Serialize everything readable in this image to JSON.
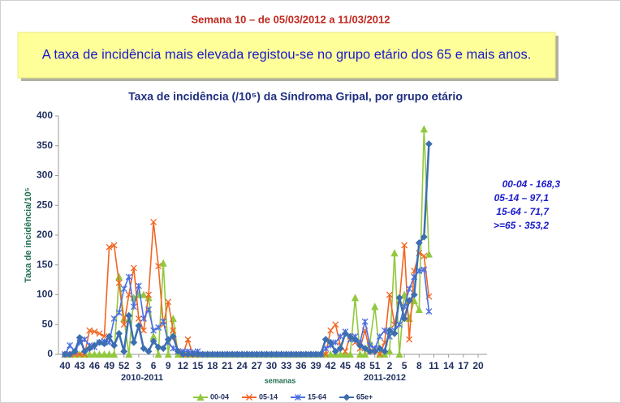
{
  "chart_data": {
    "type": "line",
    "header": "Semana 10 – de 05/03/2012 a 11/03/2012",
    "highlight": "A taxa de incidência mais elevada registou-se no grupo etário dos 65 e mais anos.",
    "title": "Taxa de incidência (/10⁵) da Síndroma Gripal, por grupo etário",
    "y_label": "Taxa de incidência/10⁵",
    "x_label": "semanas",
    "season_labels": [
      "2010-2011",
      "2011-2012"
    ],
    "annotations": [
      "00-04 -  168,3",
      "05-14 –   97,1",
      "15-64 -   71,7",
      ">=65 -   353,2"
    ],
    "categories": [
      "40",
      null,
      null,
      "43",
      null,
      null,
      "46",
      null,
      null,
      "49",
      null,
      null,
      "52",
      null,
      null,
      "3",
      null,
      null,
      "6",
      null,
      null,
      "9",
      null,
      null,
      "12",
      null,
      null,
      "15",
      null,
      null,
      "18",
      null,
      null,
      "21",
      null,
      null,
      "24",
      null,
      null,
      "27",
      null,
      null,
      "30",
      null,
      null,
      "33",
      null,
      null,
      "36",
      null,
      null,
      "39",
      null,
      null,
      "42",
      null,
      null,
      "45",
      null,
      null,
      "48",
      null,
      null,
      "51",
      null,
      null,
      "2",
      null,
      null,
      "5",
      null,
      null,
      "8",
      null,
      null,
      "11",
      null,
      null,
      "14",
      null,
      null,
      "17",
      null,
      null,
      "20"
    ],
    "series": [
      {
        "name": "00-04",
        "color": "#92c83e",
        "values": [
          0,
          0,
          0,
          0,
          0,
          0,
          0,
          0,
          0,
          0,
          0,
          130,
          60,
          0,
          95,
          100,
          100,
          95,
          30,
          0,
          153,
          0,
          60,
          0,
          0,
          0,
          0,
          0,
          0,
          0,
          0,
          0,
          0,
          0,
          0,
          0,
          0,
          0,
          0,
          0,
          0,
          0,
          0,
          0,
          0,
          0,
          0,
          0,
          0,
          0,
          0,
          0,
          0,
          0,
          0,
          0,
          0,
          0,
          0,
          95,
          0,
          0,
          20,
          80,
          0,
          0,
          5,
          170,
          0,
          100,
          60,
          90,
          75,
          378,
          168,
          null,
          null,
          null,
          null,
          null,
          null,
          null,
          null,
          null,
          null
        ]
      },
      {
        "name": "05-14",
        "color": "#f26522",
        "values": [
          0,
          0,
          0,
          0,
          0,
          40,
          38,
          35,
          30,
          180,
          183,
          120,
          50,
          100,
          145,
          60,
          40,
          100,
          222,
          148,
          50,
          88,
          40,
          5,
          0,
          25,
          0,
          0,
          0,
          0,
          0,
          0,
          0,
          0,
          0,
          0,
          0,
          0,
          0,
          0,
          0,
          0,
          0,
          0,
          0,
          0,
          0,
          0,
          0,
          0,
          0,
          0,
          0,
          0,
          40,
          50,
          15,
          5,
          30,
          20,
          10,
          40,
          5,
          10,
          0,
          20,
          100,
          50,
          90,
          183,
          25,
          140,
          170,
          165,
          97,
          null,
          null,
          null,
          null,
          null,
          null,
          null,
          null,
          null,
          null
        ]
      },
      {
        "name": "15-64",
        "color": "#4a6fe3",
        "values": [
          0,
          15,
          5,
          20,
          25,
          15,
          12,
          20,
          22,
          20,
          60,
          70,
          110,
          130,
          80,
          115,
          60,
          75,
          40,
          45,
          55,
          20,
          10,
          5,
          5,
          5,
          3,
          5,
          0,
          0,
          0,
          0,
          0,
          0,
          0,
          0,
          0,
          0,
          0,
          0,
          0,
          0,
          0,
          0,
          0,
          0,
          0,
          0,
          0,
          0,
          0,
          0,
          0,
          10,
          15,
          20,
          30,
          38,
          25,
          30,
          20,
          55,
          15,
          10,
          30,
          40,
          30,
          40,
          50,
          80,
          110,
          130,
          140,
          142,
          72,
          null,
          null,
          null,
          null,
          null,
          null,
          null,
          null,
          null,
          null
        ]
      },
      {
        "name": "65e+",
        "color": "#3d6fb0",
        "values": [
          0,
          0,
          5,
          28,
          5,
          10,
          15,
          20,
          18,
          30,
          15,
          35,
          5,
          65,
          20,
          48,
          10,
          5,
          22,
          12,
          10,
          25,
          30,
          5,
          0,
          0,
          0,
          0,
          0,
          0,
          0,
          0,
          0,
          0,
          0,
          0,
          0,
          0,
          0,
          0,
          0,
          0,
          0,
          0,
          0,
          0,
          0,
          0,
          0,
          0,
          0,
          0,
          0,
          25,
          20,
          5,
          10,
          35,
          30,
          25,
          15,
          10,
          5,
          5,
          10,
          5,
          40,
          35,
          95,
          60,
          90,
          100,
          187,
          197,
          353,
          null,
          null,
          null,
          null,
          null,
          null,
          null,
          null,
          null,
          null
        ]
      }
    ],
    "ylim": [
      0,
      400
    ],
    "yticks": [
      0,
      50,
      100,
      150,
      200,
      250,
      300,
      350,
      400
    ]
  }
}
